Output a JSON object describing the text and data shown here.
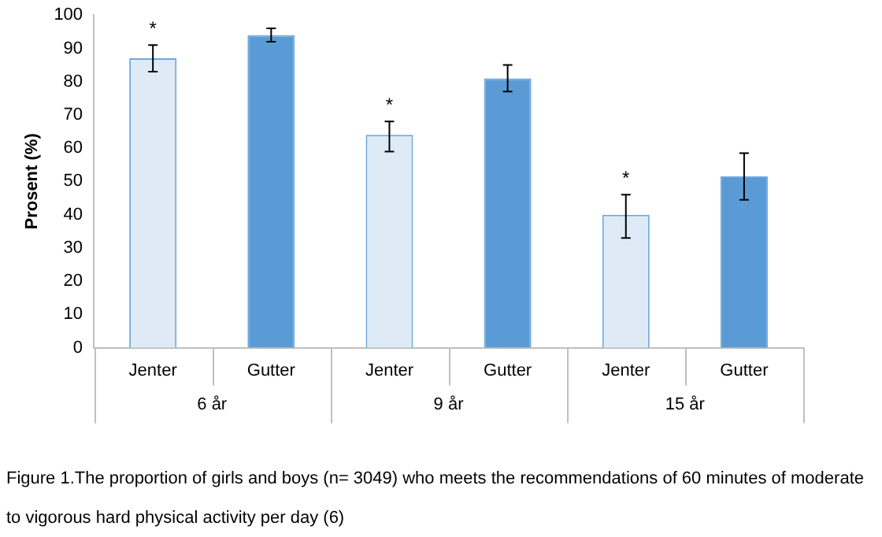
{
  "chart_data": {
    "type": "bar",
    "ylabel": "Prosent (%)",
    "categories": [
      "Jenter",
      "Gutter",
      "Jenter",
      "Gutter",
      "Jenter",
      "Gutter"
    ],
    "values": [
      87,
      94,
      64,
      81,
      40,
      51.5
    ],
    "colors": [
      "#deebf7",
      "#5b9bd5",
      "#deebf7",
      "#5b9bd5",
      "#deebf7",
      "#5b9bd5"
    ],
    "errors": [
      [
        83,
        91
      ],
      [
        92,
        96
      ],
      [
        59,
        68
      ],
      [
        77,
        85
      ],
      [
        33,
        46
      ],
      [
        44.5,
        58.5
      ]
    ],
    "value_labels": [
      "*",
      null,
      "*",
      null,
      "*",
      null
    ],
    "ylim": [
      0,
      100
    ],
    "yticks": [
      0,
      10,
      20,
      30,
      40,
      50,
      60,
      70,
      80,
      90,
      100
    ],
    "grid": false,
    "legend": false,
    "annotations": [
      "6 år",
      "9 år",
      "15 år",
      "Figure 1.The proportion of girls and boys (n= 3049) who meets the recommendations of 60 minutes of moderate to vigorous hard physical activity per day (6)"
    ]
  }
}
